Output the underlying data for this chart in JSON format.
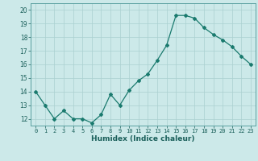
{
  "x": [
    0,
    1,
    2,
    3,
    4,
    5,
    6,
    7,
    8,
    9,
    10,
    11,
    12,
    13,
    14,
    15,
    16,
    17,
    18,
    19,
    20,
    21,
    22,
    23
  ],
  "y": [
    14.0,
    13.0,
    12.0,
    12.6,
    12.0,
    12.0,
    11.7,
    12.3,
    13.8,
    13.0,
    14.1,
    14.8,
    15.3,
    16.3,
    17.4,
    19.6,
    19.6,
    19.4,
    18.7,
    18.2,
    17.8,
    17.3,
    16.6,
    16.0
  ],
  "line_color": "#1a7a6e",
  "marker": "D",
  "marker_size": 2,
  "bg_color": "#cce9e9",
  "grid_color": "#aad0d0",
  "xlabel": "Humidex (Indice chaleur)",
  "ylim": [
    11.5,
    20.5
  ],
  "yticks": [
    12,
    13,
    14,
    15,
    16,
    17,
    18,
    19,
    20
  ],
  "xticks": [
    0,
    1,
    2,
    3,
    4,
    5,
    6,
    7,
    8,
    9,
    10,
    11,
    12,
    13,
    14,
    15,
    16,
    17,
    18,
    19,
    20,
    21,
    22,
    23
  ],
  "xlabel_color": "#1a5f5a",
  "tick_color": "#1a5f5a",
  "axis_color": "#5aa0a0"
}
